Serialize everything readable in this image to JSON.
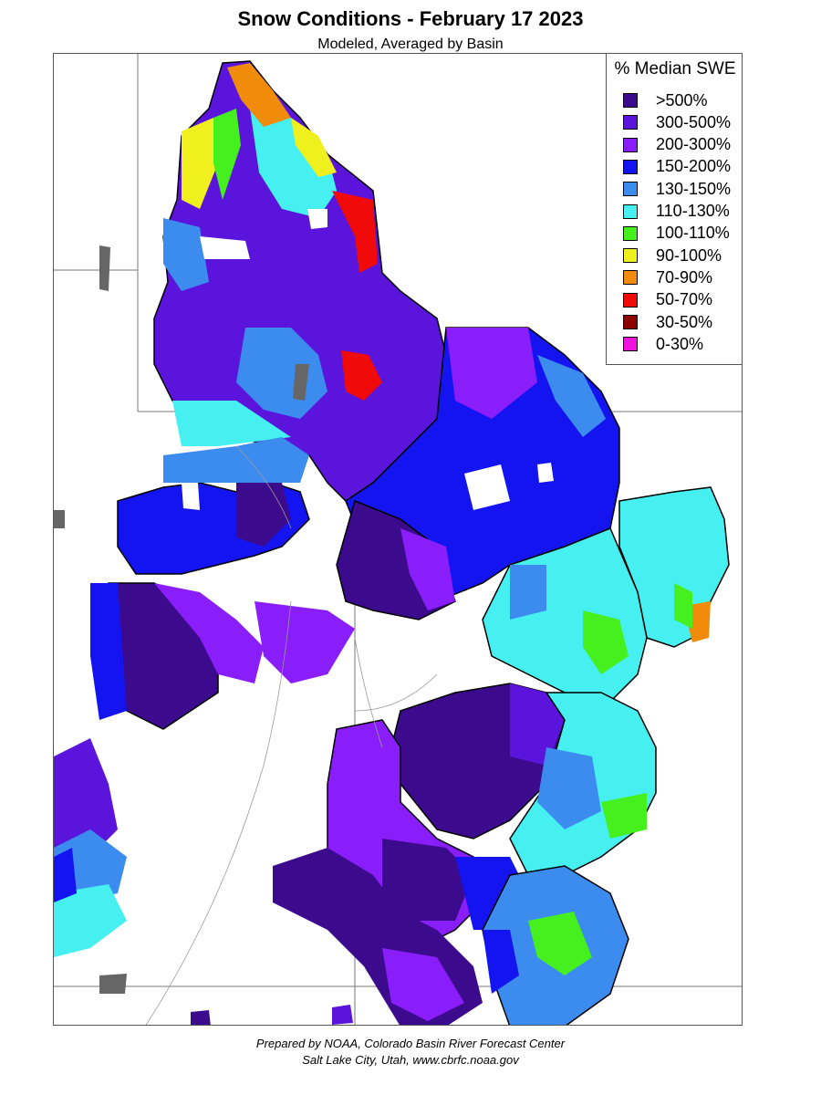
{
  "header": {
    "title": "Snow Conditions - February 17 2023",
    "subtitle": "Modeled, Averaged by Basin"
  },
  "legend": {
    "title": "% Median SWE",
    "items": [
      {
        "label": ">500%",
        "color": "#3c0a8c"
      },
      {
        "label": "300-500%",
        "color": "#5a14dc"
      },
      {
        "label": "200-300%",
        "color": "#8a1efa"
      },
      {
        "label": "150-200%",
        "color": "#1414f0"
      },
      {
        "label": "130-150%",
        "color": "#3c8cf0"
      },
      {
        "label": "110-130%",
        "color": "#46f0f0"
      },
      {
        "label": "100-110%",
        "color": "#46f01e"
      },
      {
        "label": "90-100%",
        "color": "#f0f01e"
      },
      {
        "label": "70-90%",
        "color": "#f08c0a"
      },
      {
        "label": "50-70%",
        "color": "#f00a0a"
      },
      {
        "label": "30-50%",
        "color": "#8c0000"
      },
      {
        "label": "0-30%",
        "color": "#f014dc"
      }
    ]
  },
  "footer": {
    "line1": "Prepared by NOAA, Colorado Basin River Forecast Center",
    "line2": "Salt Lake City, Utah, www.cbrfc.noaa.gov"
  }
}
